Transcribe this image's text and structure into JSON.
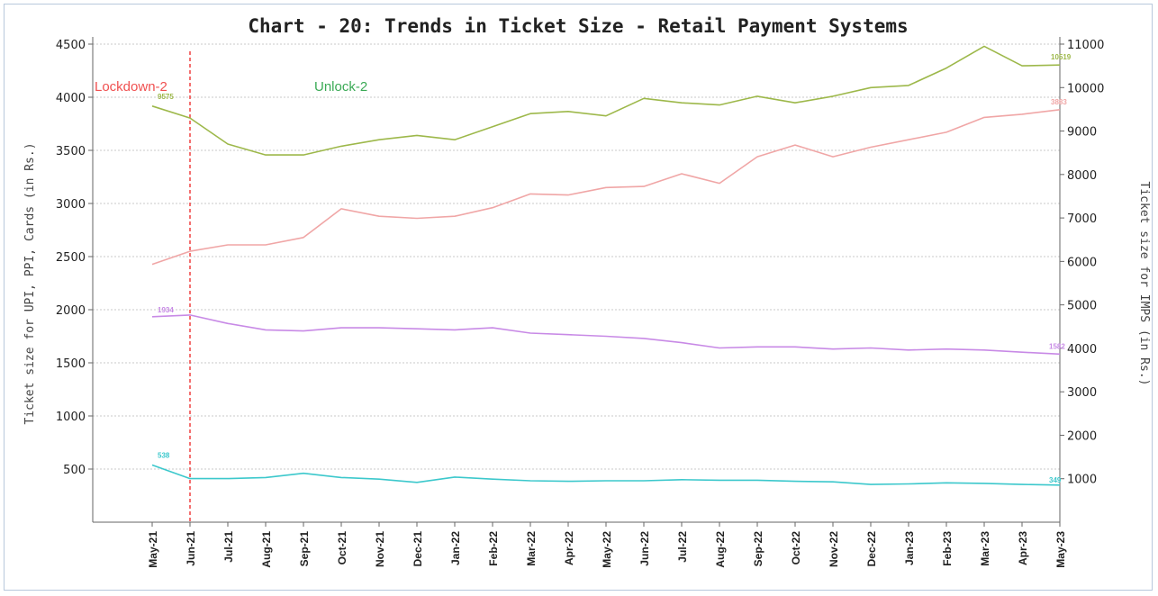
{
  "chart_data": {
    "type": "line",
    "title": "Chart - 20: Trends in Ticket Size - Retail Payment Systems",
    "ylabel_left": "Ticket size for UPI, PPI, Cards (in Rs.)",
    "ylabel_right": "Ticket size for IMPS (in Rs.)",
    "categories": [
      "May-21",
      "Jun-21",
      "Jul-21",
      "Aug-21",
      "Sep-21",
      "Oct-21",
      "Nov-21",
      "Dec-21",
      "Jan-22",
      "Feb-22",
      "Mar-22",
      "Apr-22",
      "May-22",
      "Jun-22",
      "Jul-22",
      "Aug-22",
      "Sep-22",
      "Oct-22",
      "Nov-22",
      "Dec-22",
      "Jan-23",
      "Feb-23",
      "Mar-23",
      "Apr-23",
      "May-23"
    ],
    "ylim_left": [
      0,
      4500
    ],
    "yticks_left": [
      "500",
      "1000",
      "1500",
      "2000",
      "2500",
      "3000",
      "3500",
      "4000",
      "4500"
    ],
    "ylim_right": [
      0,
      11000
    ],
    "yticks_right": [
      "1000",
      "2000",
      "3000",
      "4000",
      "5000",
      "6000",
      "7000",
      "8000",
      "9000",
      "10000",
      "11000"
    ],
    "grid": true,
    "series": [
      {
        "color": "#9db84a",
        "axis": "right",
        "values": [
          9575,
          9300,
          8700,
          8450,
          8450,
          8650,
          8800,
          8900,
          8800,
          9100,
          9400,
          9450,
          9350,
          9750,
          9650,
          9600,
          9800,
          9650,
          9800,
          10000,
          10050,
          10450,
          10950,
          10500,
          10519
        ]
      },
      {
        "color": "#f0a6a6",
        "axis": "left",
        "values": [
          2427,
          2550,
          2610,
          2610,
          2680,
          2950,
          2880,
          2860,
          2880,
          2960,
          3090,
          3080,
          3150,
          3160,
          3280,
          3190,
          3440,
          3550,
          3440,
          3530,
          3600,
          3670,
          3810,
          3840,
          3883
        ]
      },
      {
        "color": "#c88ae6",
        "axis": "left",
        "values": [
          1934,
          1950,
          1870,
          1810,
          1800,
          1830,
          1830,
          1820,
          1810,
          1830,
          1780,
          1765,
          1750,
          1730,
          1690,
          1640,
          1650,
          1650,
          1630,
          1640,
          1620,
          1630,
          1620,
          1600,
          1582
        ]
      },
      {
        "color": "#3cc8cc",
        "axis": "left",
        "values": [
          538,
          410,
          410,
          420,
          460,
          420,
          405,
          375,
          425,
          405,
          390,
          385,
          390,
          390,
          400,
          395,
          395,
          385,
          380,
          355,
          360,
          370,
          365,
          355,
          349
        ]
      }
    ],
    "data_labels": [
      {
        "text": "9575",
        "color": "#9db84a"
      },
      {
        "text": "10519",
        "color": "#9db84a"
      },
      {
        "text": "3883",
        "color": "#f0a6a6"
      },
      {
        "text": "1934",
        "color": "#c88ae6"
      },
      {
        "text": "1582",
        "color": "#c88ae6"
      },
      {
        "text": "538",
        "color": "#3cc8cc"
      },
      {
        "text": "349",
        "color": "#3cc8cc"
      }
    ],
    "annotations": [
      {
        "text": "Lockdown-2",
        "color": "#f05050"
      },
      {
        "text": "Unlock-2",
        "color": "#3aaa55"
      }
    ],
    "vline": {
      "category": "Jun-21",
      "color": "#f04040"
    }
  }
}
